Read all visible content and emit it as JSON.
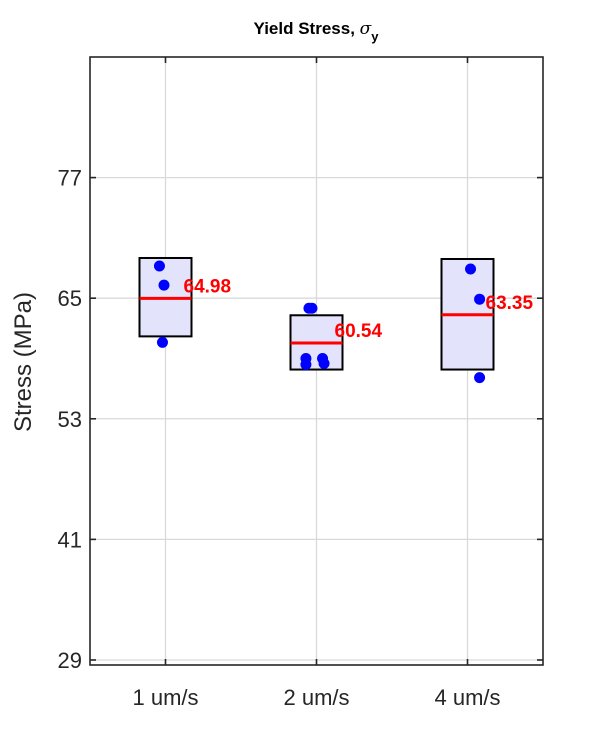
{
  "chart_data": {
    "type": "box-scatter",
    "title": {
      "text": "Yield Stress, ",
      "symbol": "σ",
      "subscript": "y"
    },
    "ylabel": "Stress (MPa)",
    "xlabel": "",
    "ylim": [
      28.5,
      89
    ],
    "yticks": [
      29,
      41,
      53,
      65,
      77
    ],
    "categories": [
      "1 um/s",
      "2 um/s",
      "4 um/s"
    ],
    "grid": true,
    "groups": [
      {
        "category": "1 um/s",
        "box_low": 61.2,
        "box_high": 69.0,
        "mean": 64.98,
        "mean_label": "64.98",
        "points": [
          {
            "x_offset": -0.04,
            "y": 68.2
          },
          {
            "x_offset": -0.01,
            "y": 66.3
          },
          {
            "x_offset": -0.02,
            "y": 60.6
          }
        ]
      },
      {
        "category": "2 um/s",
        "box_low": 57.9,
        "box_high": 63.3,
        "mean": 60.54,
        "mean_label": "60.54",
        "points": [
          {
            "x_offset": -0.05,
            "y": 64.0
          },
          {
            "x_offset": -0.03,
            "y": 64.0
          },
          {
            "x_offset": -0.07,
            "y": 59.0
          },
          {
            "x_offset": -0.07,
            "y": 58.4
          },
          {
            "x_offset": 0.04,
            "y": 59.0
          },
          {
            "x_offset": 0.05,
            "y": 58.5
          }
        ]
      },
      {
        "category": "4 um/s",
        "box_low": 57.9,
        "box_high": 68.9,
        "mean": 63.35,
        "mean_label": "63.35",
        "points": [
          {
            "x_offset": 0.02,
            "y": 67.9
          },
          {
            "x_offset": 0.08,
            "y": 64.9
          },
          {
            "x_offset": 0.08,
            "y": 57.1
          }
        ]
      }
    ],
    "colors": {
      "box_fill": "#e3e3fb",
      "box_edge": "#000000",
      "mean_line": "#ff0000",
      "mean_text": "#ff0000",
      "points": "#0000ff",
      "grid": "#d9d9d9",
      "axis": "#262626"
    }
  }
}
